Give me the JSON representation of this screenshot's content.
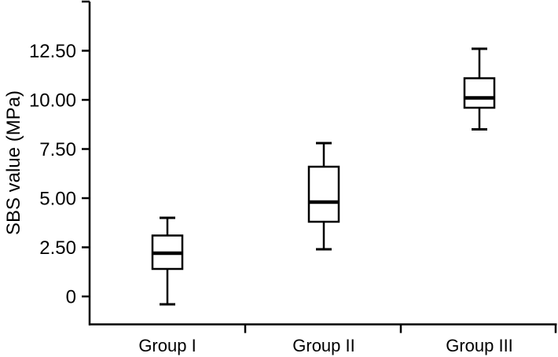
{
  "figure": {
    "background_color": "#ffffff",
    "line_color": "#000000",
    "text_color": "#000000"
  },
  "chart_data": {
    "type": "boxplot",
    "title": "",
    "xlabel": "",
    "ylabel": "SBS value (MPa)",
    "categories": [
      "Group I",
      "Group II",
      "Group III"
    ],
    "series": [
      {
        "name": "Group I",
        "min": -0.4,
        "q1": 1.4,
        "median": 2.2,
        "q3": 3.1,
        "max": 4.0
      },
      {
        "name": "Group II",
        "min": 2.4,
        "q1": 3.8,
        "median": 4.8,
        "q3": 6.6,
        "max": 7.8
      },
      {
        "name": "Group III",
        "min": 8.5,
        "q1": 9.6,
        "median": 10.1,
        "q3": 11.1,
        "max": 12.6
      }
    ],
    "y_axis": {
      "tick_values": [
        0,
        2.5,
        5,
        7.5,
        10,
        12.5
      ],
      "tick_labels": [
        "0",
        "2.50",
        "5.00",
        "7.50",
        "10.00",
        "12.50"
      ],
      "unlabeled_top_tick_value": 15,
      "range": [
        -1.45,
        15
      ],
      "grid": false
    },
    "x_axis": {
      "boundary_ticks_between_categories": true,
      "legend": "none"
    }
  }
}
